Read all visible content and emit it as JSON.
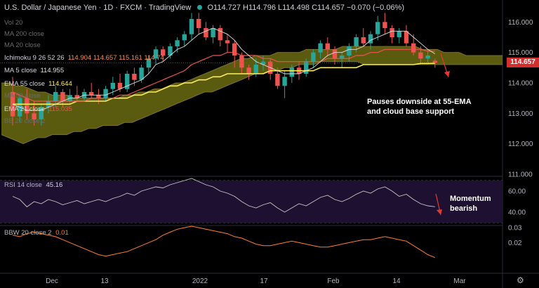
{
  "header": {
    "symbol": "U.S. Dollar / Japanese Yen · 1D · FXCM · TradingView",
    "ohlc": "O114.727  H114.796  L114.498  C114.657  −0.070 (−0.06%)"
  },
  "indicators": [
    {
      "label": "Vol 20",
      "value": "",
      "color": "#6b6b6b"
    },
    {
      "label": "MA 200 close",
      "value": "",
      "color": "#6b6b6b"
    },
    {
      "label": "MA 20 close",
      "value": "",
      "color": "#6b6b6b"
    },
    {
      "label": "Ichimoku 9 26 52 26",
      "value": "114.904  114.657  115.161  114.74",
      "color": "#d1d4dc",
      "value_color": "#ff8c42"
    },
    {
      "label": "MA 5 close",
      "value": "114.955",
      "color": "#d1d4dc",
      "value_color": "#e0e0e0"
    },
    {
      "label": "EMA 55 close",
      "value": "114.644",
      "color": "#d1d4dc",
      "value_color": "#ffee58"
    },
    {
      "label": "MA 50 close",
      "value": "",
      "color": "#6b6b6b"
    },
    {
      "label": "EMA 21 close",
      "value": "115.035",
      "color": "#d1d4dc",
      "value_color": "#ef5350"
    },
    {
      "label": "BB 20 close 2",
      "value": "",
      "color": "#6b6b6b"
    }
  ],
  "annotations": {
    "price": "Pauses downside at 55-EMA and cloud base support",
    "rsi": "Momentum bearish"
  },
  "last_price": "114.657",
  "rsi_label": "RSI 14 close",
  "rsi_value": "45.16",
  "bbw_label": "BBW 20 close 2",
  "bbw_value": "0.01",
  "chart_data": [
    {
      "type": "candlestick",
      "panel": "price",
      "ylim": [
        111.0,
        116.4
      ],
      "y_ticks": [
        111.0,
        112.0,
        113.0,
        114.0,
        115.0,
        116.0
      ],
      "x_ticks": [
        "Dec",
        "13",
        "2022",
        "17",
        "Feb",
        "14",
        "Mar"
      ],
      "last_price": 114.657,
      "ohlc": [
        [
          113.7,
          114.2,
          112.6,
          112.9
        ],
        [
          112.9,
          113.6,
          112.7,
          113.5
        ],
        [
          113.5,
          113.8,
          112.8,
          113.0
        ],
        [
          113.0,
          113.4,
          112.6,
          112.8
        ],
        [
          112.8,
          113.3,
          112.6,
          113.2
        ],
        [
          113.2,
          113.6,
          113.0,
          113.4
        ],
        [
          113.4,
          113.9,
          113.2,
          113.7
        ],
        [
          113.7,
          113.8,
          113.2,
          113.4
        ],
        [
          113.4,
          113.8,
          113.3,
          113.6
        ],
        [
          113.6,
          113.9,
          113.4,
          113.5
        ],
        [
          113.5,
          113.8,
          113.4,
          113.7
        ],
        [
          113.7,
          114.0,
          113.5,
          113.6
        ],
        [
          113.6,
          113.8,
          113.3,
          113.5
        ],
        [
          113.5,
          113.9,
          113.4,
          113.8
        ],
        [
          113.8,
          114.2,
          113.6,
          114.0
        ],
        [
          114.0,
          114.3,
          113.7,
          113.8
        ],
        [
          113.8,
          114.4,
          113.7,
          114.3
        ],
        [
          114.3,
          114.5,
          113.9,
          114.1
        ],
        [
          114.1,
          114.6,
          114.0,
          114.5
        ],
        [
          114.5,
          114.9,
          114.3,
          114.8
        ],
        [
          114.8,
          115.2,
          114.6,
          115.1
        ],
        [
          115.1,
          115.2,
          114.7,
          114.9
        ],
        [
          114.9,
          115.3,
          114.8,
          115.2
        ],
        [
          115.2,
          115.5,
          115.0,
          115.4
        ],
        [
          115.4,
          115.7,
          115.2,
          115.6
        ],
        [
          115.6,
          116.3,
          115.4,
          116.1
        ],
        [
          116.1,
          116.3,
          115.6,
          115.8
        ],
        [
          115.8,
          116.0,
          115.4,
          115.5
        ],
        [
          115.5,
          115.9,
          115.3,
          115.8
        ],
        [
          115.8,
          115.9,
          115.2,
          115.4
        ],
        [
          115.4,
          115.6,
          115.0,
          115.3
        ],
        [
          115.3,
          115.4,
          114.5,
          114.9
        ],
        [
          114.9,
          115.0,
          114.3,
          114.5
        ],
        [
          114.5,
          114.6,
          114.1,
          114.3
        ],
        [
          114.3,
          114.8,
          114.2,
          114.6
        ],
        [
          114.6,
          114.9,
          114.4,
          114.7
        ],
        [
          114.7,
          114.8,
          114.1,
          114.3
        ],
        [
          114.3,
          114.5,
          113.8,
          113.9
        ],
        [
          113.9,
          114.4,
          113.5,
          114.2
        ],
        [
          114.2,
          114.6,
          114.0,
          114.5
        ],
        [
          114.5,
          114.7,
          114.1,
          114.3
        ],
        [
          114.3,
          114.8,
          114.2,
          114.7
        ],
        [
          114.7,
          115.1,
          114.5,
          115.0
        ],
        [
          115.0,
          115.4,
          114.8,
          115.3
        ],
        [
          115.3,
          115.5,
          114.9,
          115.1
        ],
        [
          115.1,
          115.2,
          114.6,
          114.8
        ],
        [
          114.8,
          115.0,
          114.5,
          114.9
        ],
        [
          114.9,
          115.3,
          114.7,
          115.2
        ],
        [
          115.2,
          115.6,
          115.0,
          115.5
        ],
        [
          115.5,
          115.8,
          115.2,
          115.3
        ],
        [
          115.3,
          115.7,
          115.1,
          115.6
        ],
        [
          115.6,
          116.2,
          115.4,
          116.0
        ],
        [
          116.0,
          116.3,
          115.6,
          115.8
        ],
        [
          115.8,
          115.9,
          115.3,
          115.5
        ],
        [
          115.5,
          115.8,
          115.3,
          115.7
        ],
        [
          115.7,
          115.9,
          115.2,
          115.3
        ],
        [
          115.3,
          115.6,
          114.9,
          115.0
        ],
        [
          115.0,
          115.2,
          114.6,
          114.8
        ],
        [
          114.8,
          115.1,
          114.6,
          114.9
        ],
        [
          114.727,
          114.796,
          114.498,
          114.657
        ]
      ],
      "ma5": [
        113.3,
        113.2,
        113.1,
        113.1,
        113.1,
        113.2,
        113.3,
        113.4,
        113.5,
        113.5,
        113.6,
        113.6,
        113.6,
        113.6,
        113.7,
        113.8,
        113.9,
        114.0,
        114.1,
        114.3,
        114.6,
        114.7,
        114.9,
        115.1,
        115.2,
        115.4,
        115.6,
        115.7,
        115.8,
        115.7,
        115.6,
        115.4,
        115.1,
        114.9,
        114.7,
        114.6,
        114.5,
        114.4,
        114.3,
        114.3,
        114.3,
        114.4,
        114.5,
        114.7,
        114.9,
        115.0,
        115.0,
        115.1,
        115.1,
        115.2,
        115.4,
        115.5,
        115.6,
        115.7,
        115.7,
        115.7,
        115.5,
        115.3,
        115.1,
        114.955
      ],
      "ema21": [
        113.7,
        113.6,
        113.5,
        113.4,
        113.4,
        113.4,
        113.4,
        113.4,
        113.4,
        113.4,
        113.4,
        113.5,
        113.5,
        113.5,
        113.5,
        113.6,
        113.6,
        113.7,
        113.8,
        113.9,
        114.0,
        114.1,
        114.2,
        114.3,
        114.4,
        114.6,
        114.7,
        114.8,
        114.9,
        114.9,
        115.0,
        115.0,
        114.9,
        114.9,
        114.9,
        114.8,
        114.8,
        114.7,
        114.7,
        114.7,
        114.7,
        114.7,
        114.7,
        114.7,
        114.8,
        114.8,
        114.8,
        114.8,
        114.9,
        114.9,
        115.0,
        115.0,
        115.1,
        115.1,
        115.1,
        115.1,
        115.1,
        115.1,
        115.04,
        115.035
      ],
      "ema55": [
        113.3,
        113.3,
        113.3,
        113.3,
        113.3,
        113.3,
        113.3,
        113.3,
        113.3,
        113.4,
        113.4,
        113.4,
        113.4,
        113.4,
        113.5,
        113.5,
        113.5,
        113.6,
        113.6,
        113.7,
        113.7,
        113.8,
        113.9,
        113.9,
        114.0,
        114.0,
        114.1,
        114.1,
        114.2,
        114.2,
        114.3,
        114.3,
        114.3,
        114.3,
        114.3,
        114.3,
        114.4,
        114.4,
        114.4,
        114.4,
        114.4,
        114.4,
        114.4,
        114.5,
        114.5,
        114.5,
        114.5,
        114.5,
        114.5,
        114.6,
        114.6,
        114.6,
        114.6,
        114.6,
        114.6,
        114.6,
        114.6,
        114.64,
        114.64,
        114.644
      ],
      "cloud_top": [
        114.0,
        114.0,
        113.9,
        113.9,
        113.8,
        113.7,
        113.7,
        113.6,
        113.6,
        113.6,
        113.5,
        113.5,
        113.5,
        113.5,
        113.5,
        113.5,
        113.5,
        113.6,
        113.6,
        113.7,
        113.7,
        113.8,
        113.8,
        113.9,
        114.0,
        114.0,
        114.1,
        114.2,
        114.3,
        114.4,
        114.5,
        114.6,
        114.7,
        114.8,
        114.8,
        114.9,
        114.9,
        114.9,
        115.0,
        115.0,
        115.0,
        115.0,
        115.1,
        115.1,
        115.1,
        115.1,
        115.1,
        115.2,
        115.2,
        115.2,
        115.2,
        115.2,
        115.2,
        115.2,
        115.2,
        115.2,
        115.2,
        115.2,
        115.1,
        115.1,
        115.1,
        115.0,
        115.0,
        115.0,
        114.9,
        114.9,
        114.9,
        114.9,
        114.9,
        114.9
      ],
      "cloud_bottom": [
        112.3,
        112.2,
        112.1,
        112.0,
        112.1,
        112.2,
        112.2,
        112.3,
        112.3,
        112.3,
        112.4,
        112.4,
        112.5,
        112.5,
        112.6,
        112.6,
        112.6,
        112.7,
        112.7,
        112.8,
        112.9,
        113.0,
        113.1,
        113.2,
        113.3,
        113.4,
        113.5,
        113.6,
        113.7,
        113.7,
        113.8,
        113.9,
        114.0,
        114.1,
        114.2,
        114.3,
        114.3,
        114.4,
        114.4,
        114.5,
        114.5,
        114.6,
        114.6,
        114.6,
        114.7,
        114.7,
        114.7,
        114.7,
        114.7,
        114.7,
        114.6,
        114.6,
        114.6,
        114.6,
        114.6,
        114.6,
        114.6,
        114.6,
        114.6,
        114.6,
        114.6,
        114.6,
        114.6,
        114.6,
        114.6,
        114.6,
        114.6,
        114.6,
        114.6,
        114.6
      ]
    },
    {
      "type": "line",
      "panel": "rsi",
      "ylim": [
        28,
        72
      ],
      "y_ticks": [
        40.0,
        60.0
      ],
      "bands": [
        30,
        70
      ],
      "values": [
        55,
        52,
        45,
        50,
        48,
        52,
        50,
        47,
        49,
        51,
        48,
        50,
        52,
        50,
        53,
        55,
        58,
        56,
        60,
        62,
        64,
        63,
        66,
        68,
        70,
        72,
        69,
        66,
        64,
        60,
        58,
        55,
        50,
        46,
        44,
        47,
        49,
        44,
        40,
        44,
        48,
        46,
        50,
        54,
        56,
        52,
        50,
        53,
        57,
        60,
        58,
        62,
        64,
        60,
        55,
        57,
        52,
        48,
        46,
        45.16
      ]
    },
    {
      "type": "line",
      "panel": "bbw",
      "ylim": [
        0.0,
        0.031
      ],
      "y_ticks": [
        0.02,
        0.03
      ],
      "values": [
        0.025,
        0.024,
        0.026,
        0.027,
        0.026,
        0.025,
        0.024,
        0.022,
        0.02,
        0.018,
        0.016,
        0.014,
        0.012,
        0.011,
        0.012,
        0.013,
        0.014,
        0.016,
        0.018,
        0.02,
        0.022,
        0.025,
        0.027,
        0.029,
        0.03,
        0.031,
        0.03,
        0.029,
        0.028,
        0.027,
        0.026,
        0.024,
        0.023,
        0.021,
        0.019,
        0.018,
        0.018,
        0.019,
        0.02,
        0.021,
        0.02,
        0.019,
        0.018,
        0.017,
        0.017,
        0.018,
        0.019,
        0.02,
        0.021,
        0.022,
        0.022,
        0.023,
        0.024,
        0.023,
        0.022,
        0.021,
        0.018,
        0.015,
        0.012,
        0.01
      ]
    }
  ]
}
